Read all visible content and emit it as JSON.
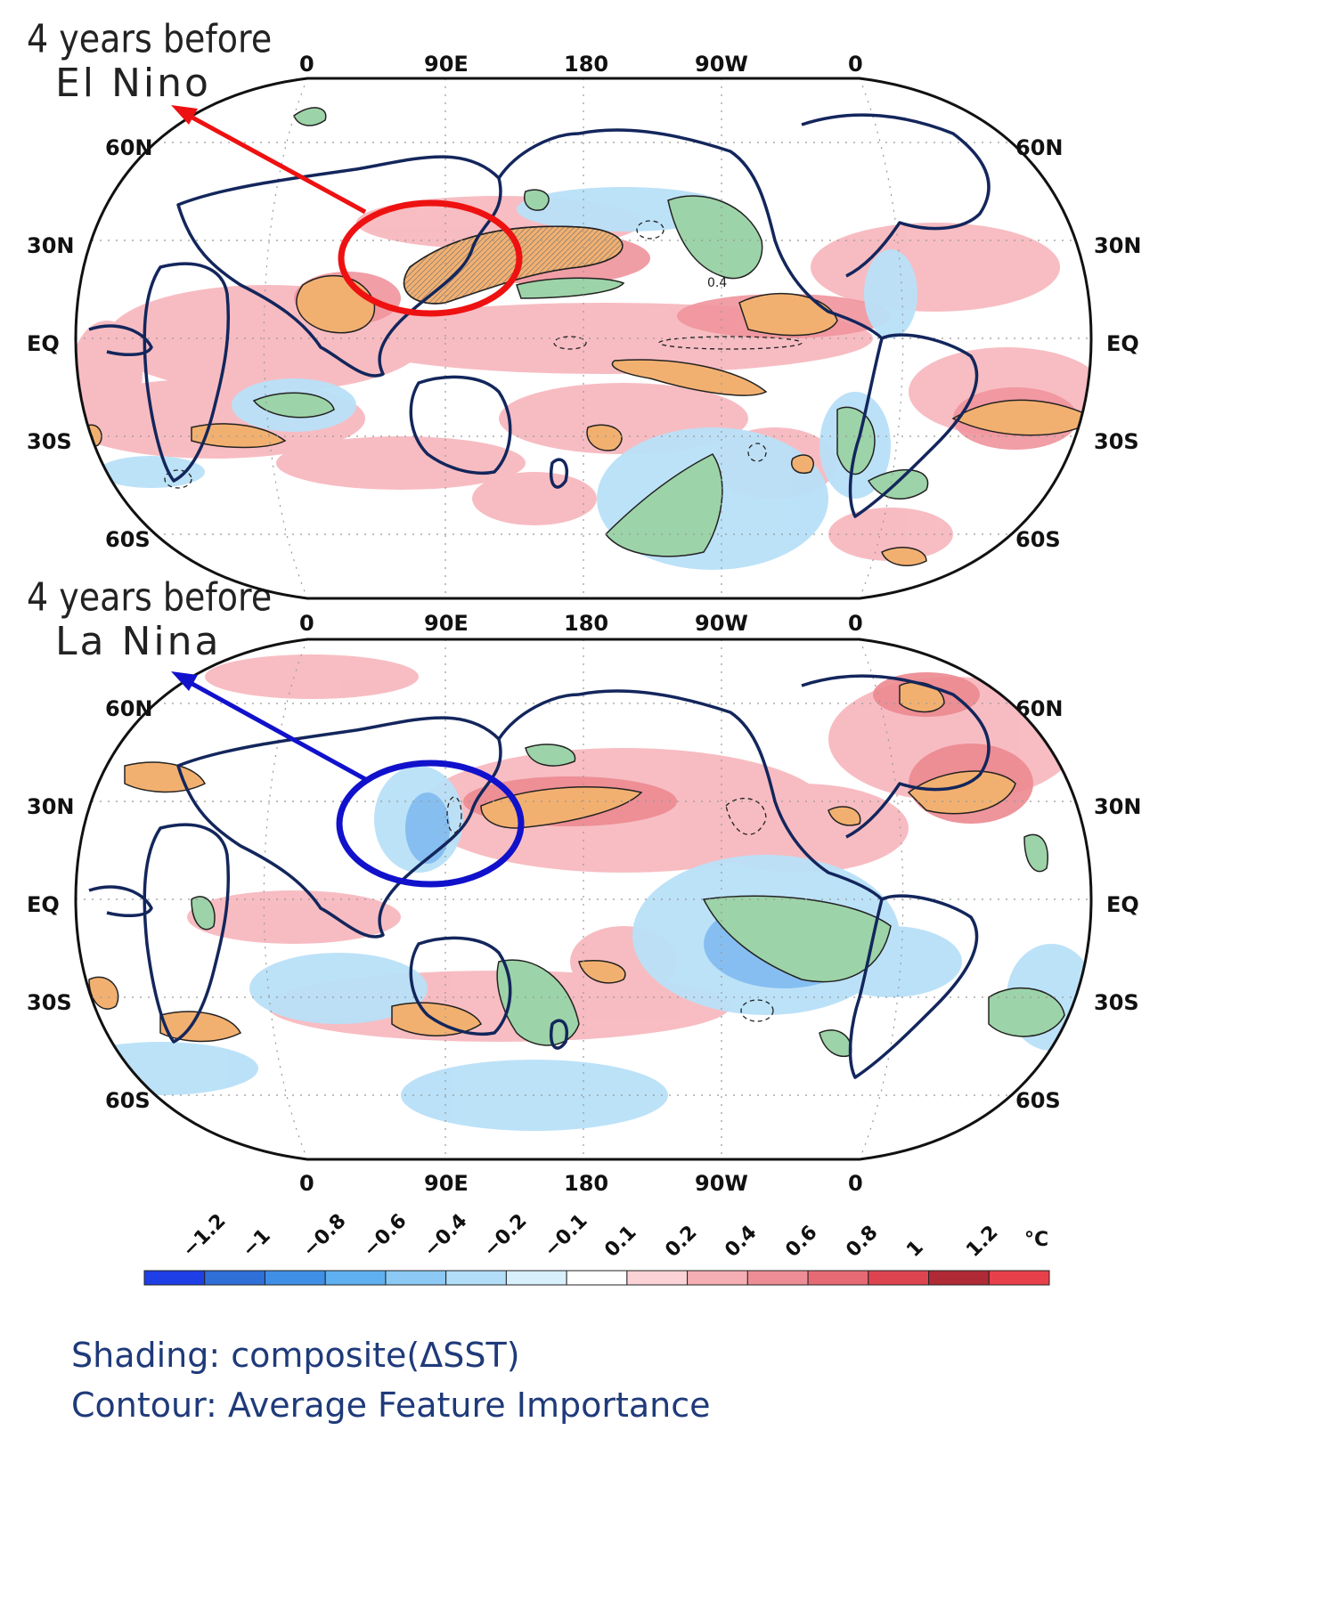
{
  "panels": [
    {
      "line1": "4 years before",
      "line2": "El Nino",
      "marker_color": "#ee1111"
    },
    {
      "line1": "4 years before",
      "line2": "La Nina",
      "marker_color": "#1111cc"
    }
  ],
  "lon_labels": [
    "0",
    "90E",
    "180",
    "90W",
    "0"
  ],
  "lat_labels": [
    "60N",
    "30N",
    "EQ",
    "30S",
    "60S"
  ],
  "contour_value_label": "0.4",
  "colorbar": {
    "ticks": [
      "-1.2",
      "-1",
      "-0.8",
      "-0.6",
      "-0.4",
      "-0.2",
      "-0.1",
      "0.1",
      "0.2",
      "0.4",
      "0.6",
      "0.8",
      "1",
      "1.2"
    ],
    "unit": "°C",
    "colors": [
      "#1f3fe6",
      "#2f6fd8",
      "#3f8fe6",
      "#5fb0f0",
      "#8cc9f5",
      "#b2def9",
      "#d8f0fc",
      "#ffffff",
      "#fbd2d6",
      "#f5aeb4",
      "#ee8d95",
      "#e66a74",
      "#dd4450",
      "#b02a35",
      "#e8404a"
    ]
  },
  "legend_lines": {
    "shading": "Shading: composite(ΔSST)",
    "contour": "Contour: Average Feature Importance"
  }
}
